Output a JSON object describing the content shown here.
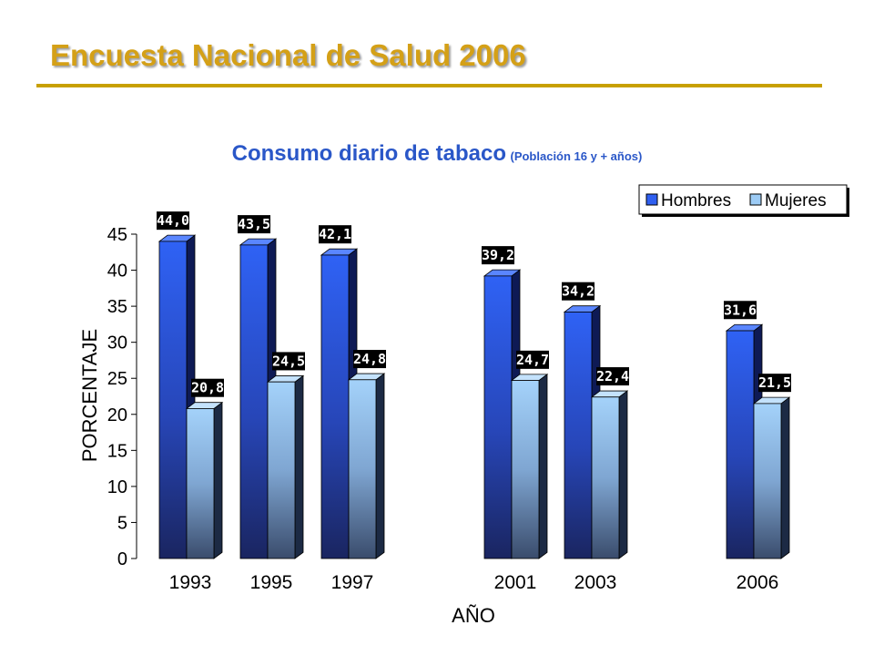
{
  "slide": {
    "title": "Encuesta Nacional de Salud 2006"
  },
  "chart_title": {
    "main": "Consumo diario de tabaco",
    "sub": "(Población 16 y + años)"
  },
  "chart_data": {
    "type": "bar",
    "title": "Consumo diario de tabaco",
    "subtitle": "(Población 16 y + años)",
    "xlabel": "AÑO",
    "ylabel": "PORCENTAJE",
    "ylim": [
      0,
      45
    ],
    "yticks": [
      "0",
      "5",
      "10",
      "15",
      "20",
      "25",
      "30",
      "35",
      "40",
      "45"
    ],
    "categories": [
      "1993",
      "1995",
      "1997",
      "2001",
      "2003",
      "2006"
    ],
    "series": [
      {
        "name": "Hombres",
        "values": [
          44.0,
          43.5,
          42.1,
          39.2,
          34.2,
          31.6
        ],
        "labels": [
          "44,0",
          "43,5",
          "42,1",
          "39,2",
          "34,2",
          "31,6"
        ],
        "color": "#2F5FF0"
      },
      {
        "name": "Mujeres",
        "values": [
          20.8,
          24.5,
          24.8,
          24.7,
          22.4,
          21.5
        ],
        "labels": [
          "20,8",
          "24,5",
          "24,8",
          "24,7",
          "22,4",
          "21,5"
        ],
        "color": "#9CCBF5"
      }
    ],
    "legend_position": "top-right",
    "grid": false,
    "style": "3d"
  },
  "colors": {
    "title": "#D4A017",
    "chart_title": "#2A57C8",
    "label_bg": "#000000",
    "label_text": "#ffffff"
  }
}
